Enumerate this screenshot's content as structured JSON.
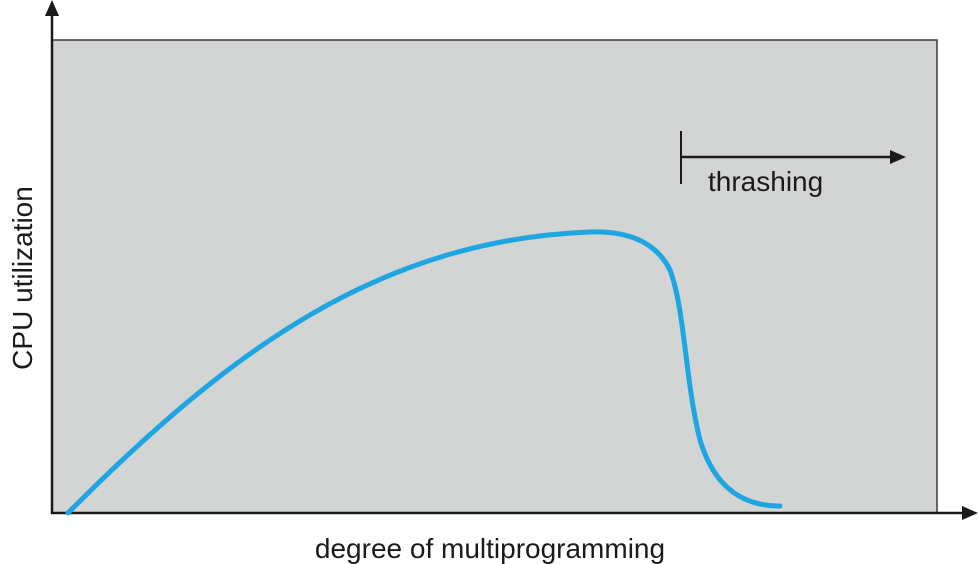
{
  "axes": {
    "x_label": "degree of multiprogramming",
    "y_label": "CPU utilization"
  },
  "annotation": {
    "label": "thrashing"
  }
}
